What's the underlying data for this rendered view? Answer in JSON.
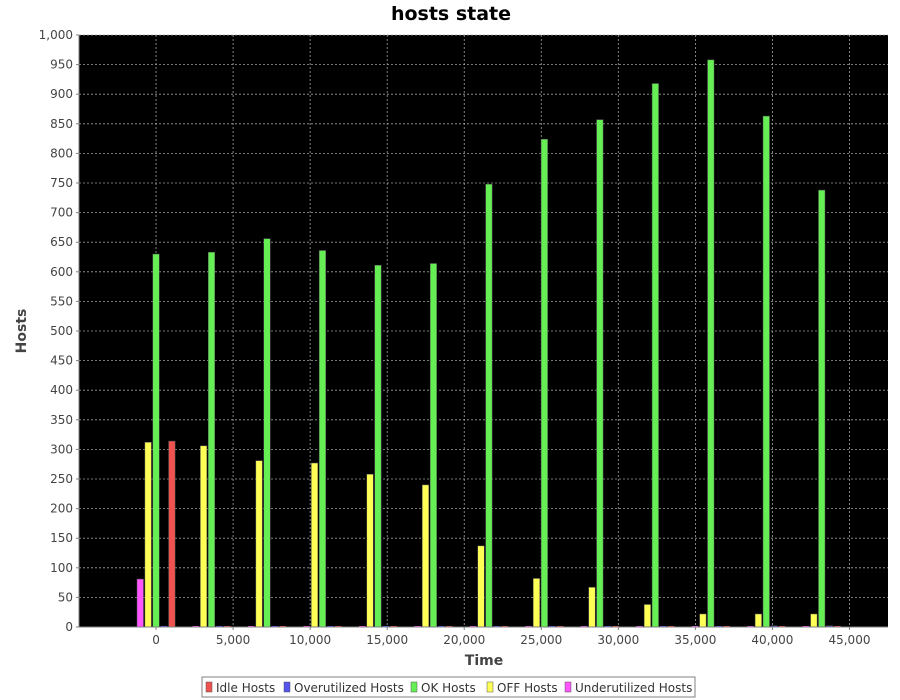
{
  "chart_data": {
    "type": "bar",
    "title": "hosts state",
    "xlabel": "Time",
    "ylabel": "Hosts",
    "xlim": [
      -5000,
      47500
    ],
    "ylim": [
      0,
      1000
    ],
    "x_ticks": [
      0,
      5000,
      10000,
      15000,
      20000,
      25000,
      30000,
      35000,
      40000,
      45000
    ],
    "x_tick_labels": [
      "0",
      "5,000",
      "10,000",
      "15,000",
      "20,000",
      "25,000",
      "30,000",
      "35,000",
      "40,000",
      "45,000"
    ],
    "y_ticks": [
      0,
      50,
      100,
      150,
      200,
      250,
      300,
      350,
      400,
      450,
      500,
      550,
      600,
      650,
      700,
      750,
      800,
      850,
      900,
      950,
      1000
    ],
    "y_tick_labels": [
      "0",
      "50",
      "100",
      "150",
      "200",
      "250",
      "300",
      "350",
      "400",
      "450",
      "500",
      "550",
      "600",
      "650",
      "700",
      "750",
      "800",
      "850",
      "900",
      "950",
      "1,000"
    ],
    "grid": true,
    "background": "#000000",
    "legend_position": "bottom",
    "x": [
      0,
      3600,
      7200,
      10800,
      14400,
      18000,
      21600,
      25200,
      28800,
      32400,
      36000,
      39600,
      43200
    ],
    "series": [
      {
        "name": "Idle Hosts",
        "color": "#ef5350",
        "values": [
          314,
          0,
          0,
          0,
          0,
          0,
          0,
          0,
          0,
          0,
          0,
          0,
          0
        ]
      },
      {
        "name": "Overutilized Hosts",
        "color": "#5555ee",
        "values": [
          0,
          0,
          0,
          0,
          0,
          0,
          0,
          0,
          0,
          0,
          0,
          2,
          2
        ]
      },
      {
        "name": "OK Hosts",
        "color": "#66ee55",
        "values": [
          630,
          633,
          656,
          636,
          611,
          614,
          748,
          824,
          857,
          918,
          958,
          863,
          738
        ]
      },
      {
        "name": "OFF Hosts",
        "color": "#ffff55",
        "values": [
          312,
          306,
          281,
          277,
          258,
          240,
          137,
          82,
          67,
          38,
          22,
          22,
          22
        ]
      },
      {
        "name": "Underutilized Hosts",
        "color": "#ff55ff",
        "values": [
          81,
          0,
          0,
          0,
          0,
          0,
          0,
          0,
          0,
          0,
          0,
          0,
          0
        ]
      }
    ],
    "draw_order": [
      "Underutilized Hosts",
      "OFF Hosts",
      "OK Hosts",
      "Overutilized Hosts",
      "Idle Hosts"
    ]
  }
}
